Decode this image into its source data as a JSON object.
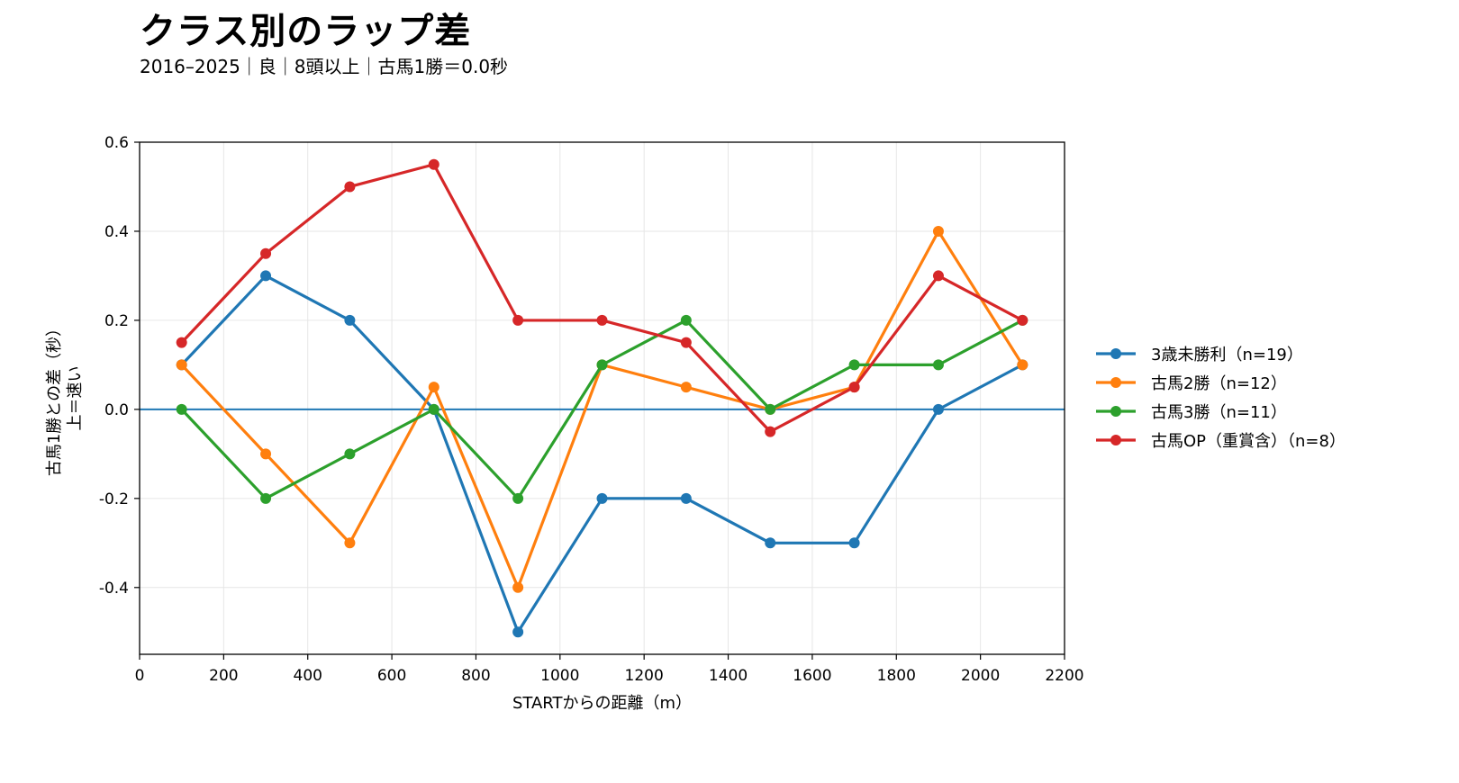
{
  "title": "クラス別のラップ差",
  "subtitle": "2016–2025｜良｜8頭以上｜古馬1勝＝0.0秒",
  "chart_data": {
    "type": "line",
    "title": "クラス別のラップ差",
    "subtitle": "2016–2025｜良｜8頭以上｜古馬1勝＝0.0秒",
    "xlabel": "STARTからの距離（m）",
    "ylabel_line1": "古馬1勝との差（秒）",
    "ylabel_line2": "上＝速い",
    "xlim": [
      0,
      2200
    ],
    "ylim": [
      -0.55,
      0.6
    ],
    "xticks": [
      0,
      200,
      400,
      600,
      800,
      1000,
      1200,
      1400,
      1600,
      1800,
      2000,
      2200
    ],
    "yticks": [
      -0.4,
      -0.2,
      0.0,
      0.2,
      0.4,
      0.6
    ],
    "ytick_labels": [
      "-0.4",
      "-0.2",
      "0.0",
      "0.2",
      "0.4",
      "0.6"
    ],
    "grid": true,
    "reference_line": 0.0,
    "legend_position": "right",
    "x": [
      100,
      300,
      500,
      700,
      900,
      1100,
      1300,
      1500,
      1700,
      1900,
      2100
    ],
    "series": [
      {
        "name": "3歳未勝利（n=19）",
        "color": "#1f77b4",
        "values": [
          0.1,
          0.3,
          0.2,
          0.0,
          -0.5,
          -0.2,
          -0.2,
          -0.3,
          -0.3,
          0.0,
          0.1
        ]
      },
      {
        "name": "古馬2勝（n=12）",
        "color": "#ff7f0e",
        "values": [
          0.1,
          -0.1,
          -0.3,
          0.05,
          -0.4,
          0.1,
          0.05,
          0.0,
          0.05,
          0.4,
          0.1
        ]
      },
      {
        "name": "古馬3勝（n=11）",
        "color": "#2ca02c",
        "values": [
          0.0,
          -0.2,
          -0.1,
          0.0,
          -0.2,
          0.1,
          0.2,
          0.0,
          0.1,
          0.1,
          0.2
        ]
      },
      {
        "name": "古馬OP（重賞含）（n=8）",
        "color": "#d62728",
        "values": [
          0.15,
          0.35,
          0.5,
          0.55,
          0.2,
          0.2,
          0.15,
          -0.05,
          0.05,
          0.3,
          0.2
        ]
      }
    ]
  }
}
